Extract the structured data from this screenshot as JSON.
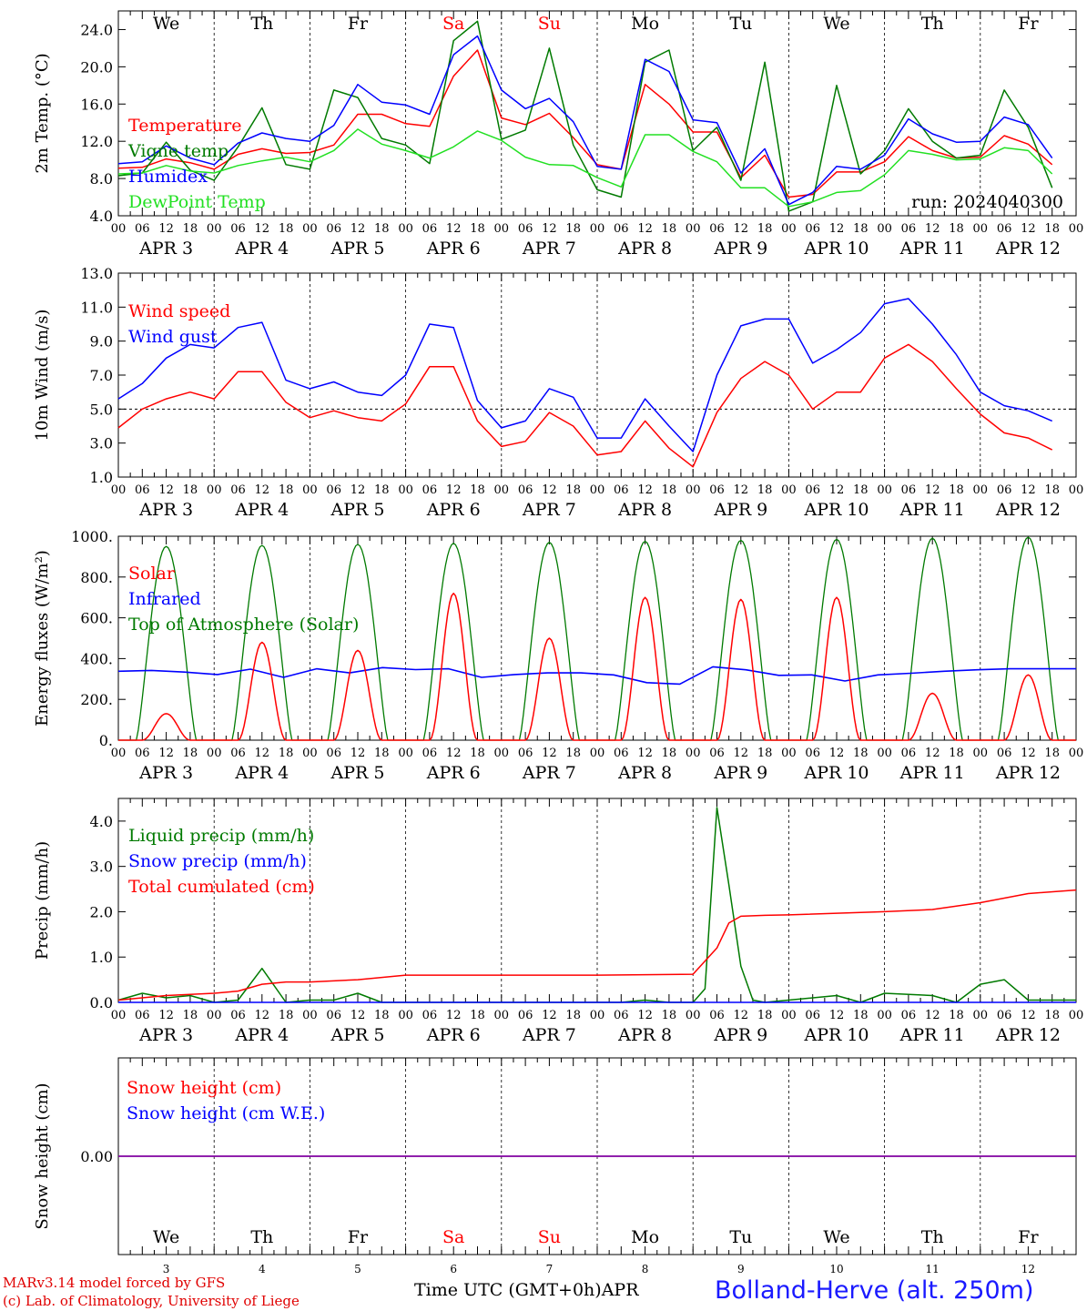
{
  "footer": {
    "model": "MARv3.14 model forced by GFS",
    "copyright": "(c) Lab. of Climatology, University of Liege",
    "xaxis_title": "Time UTC (GMT+0h)APR",
    "station": "Bolland-Herve (alt. 250m)"
  },
  "colors": {
    "red": "#ff0000",
    "blue": "#0000ff",
    "green": "#007a00",
    "lightgreen": "#22e022",
    "purple": "#8000a0"
  },
  "days": {
    "weekdays": [
      "We",
      "Th",
      "Fr",
      "Sa",
      "Su",
      "Mo",
      "Tu",
      "We",
      "Th",
      "Fr"
    ],
    "weekend_color_days": [
      "Sa",
      "Su"
    ],
    "month_labels": [
      "APR  3",
      "APR  4",
      "APR  5",
      "APR  6",
      "APR  7",
      "APR  8",
      "APR  9",
      "APR 10",
      "APR 11",
      "APR 12"
    ],
    "day_numbers": [
      "3",
      "4",
      "5",
      "6",
      "7",
      "8",
      "9",
      "10",
      "11",
      "12"
    ],
    "hour_ticks": [
      "00",
      "06",
      "12",
      "18"
    ],
    "last_tick": "00"
  },
  "chart_data": [
    {
      "type": "line",
      "ylabel": "2m Temp. (°C)",
      "ylim": [
        4,
        26
      ],
      "yticks": [
        "4.0",
        "8.0",
        "12.0",
        "16.0",
        "20.0",
        "24.0"
      ],
      "annotation": "run: 2024040300",
      "x_hours": [
        0,
        6,
        12,
        18,
        24,
        30,
        36,
        42,
        48,
        54,
        60,
        66,
        72,
        78,
        84,
        90,
        96,
        102,
        108,
        114,
        120,
        126,
        132,
        138,
        144,
        150,
        156,
        162,
        168,
        174,
        180,
        186,
        192,
        198,
        204,
        210,
        216,
        222,
        228,
        234
      ],
      "series": [
        {
          "name": "Temperature",
          "color": "red",
          "values": [
            9.1,
            9.2,
            10.1,
            9.7,
            9.0,
            10.6,
            11.2,
            10.7,
            10.8,
            11.6,
            14.9,
            14.9,
            13.9,
            13.6,
            19.0,
            21.8,
            14.5,
            13.8,
            15.0,
            12.4,
            9.5,
            9.0,
            18.1,
            16.0,
            13.0,
            13.0,
            8.1,
            10.5,
            6.0,
            6.3,
            8.7,
            8.7,
            9.8,
            12.5,
            11.0,
            10.2,
            10.3,
            12.6,
            11.7,
            9.5
          ]
        },
        {
          "name": "Vigne temp",
          "color": "green",
          "values": [
            8.3,
            8.6,
            11.9,
            8.9,
            7.8,
            11.4,
            15.6,
            9.5,
            9.0,
            17.5,
            16.7,
            12.3,
            11.6,
            9.6,
            22.8,
            24.9,
            12.2,
            13.2,
            22.0,
            11.6,
            6.8,
            6.0,
            20.5,
            21.8,
            11.0,
            13.5,
            7.8,
            20.5,
            4.5,
            5.5,
            18.0,
            8.5,
            11.0,
            15.5,
            12.0,
            10.2,
            10.5,
            17.5,
            13.5,
            7.0
          ]
        },
        {
          "name": "Humidex",
          "color": "blue",
          "values": [
            9.6,
            9.8,
            11.5,
            10.2,
            9.5,
            11.8,
            12.9,
            12.3,
            12.0,
            13.7,
            18.1,
            16.2,
            15.9,
            14.9,
            21.3,
            23.3,
            17.5,
            15.5,
            16.6,
            14.1,
            9.3,
            9.0,
            20.8,
            19.5,
            14.3,
            14.0,
            8.6,
            11.2,
            5.2,
            6.5,
            9.3,
            9.0,
            10.5,
            14.4,
            12.8,
            11.9,
            12.0,
            14.6,
            13.8,
            10.2
          ]
        },
        {
          "name": "DewPoint Temp",
          "color": "lightgreen",
          "values": [
            8.5,
            8.6,
            9.4,
            8.8,
            8.6,
            9.4,
            9.9,
            10.3,
            9.8,
            11.0,
            13.3,
            11.7,
            11.0,
            10.2,
            11.4,
            13.1,
            12.1,
            10.3,
            9.5,
            9.4,
            8.1,
            7.1,
            12.7,
            12.7,
            10.9,
            9.8,
            7.0,
            7.0,
            5.0,
            5.5,
            6.5,
            6.7,
            8.4,
            11.0,
            10.6,
            10.0,
            10.1,
            11.3,
            11.0,
            8.5
          ]
        }
      ]
    },
    {
      "type": "line",
      "ylabel": "10m Wind (m/s)",
      "ylim": [
        1,
        13
      ],
      "yticks": [
        "1.0",
        "3.0",
        "5.0",
        "7.0",
        "9.0",
        "11.0",
        "13.0"
      ],
      "reference_line": 5.0,
      "x_hours": [
        0,
        6,
        12,
        18,
        24,
        30,
        36,
        42,
        48,
        54,
        60,
        66,
        72,
        78,
        84,
        90,
        96,
        102,
        108,
        114,
        120,
        126,
        132,
        138,
        144,
        150,
        156,
        162,
        168,
        174,
        180,
        186,
        192,
        198,
        204,
        210,
        216,
        222,
        228,
        234
      ],
      "series": [
        {
          "name": "Wind speed",
          "color": "red",
          "values": [
            3.9,
            5.0,
            5.6,
            6.0,
            5.6,
            7.2,
            7.2,
            5.4,
            4.5,
            4.9,
            4.5,
            4.3,
            5.3,
            7.5,
            7.5,
            4.3,
            2.8,
            3.1,
            4.8,
            4.0,
            2.3,
            2.5,
            4.3,
            2.7,
            1.6,
            4.8,
            6.8,
            7.8,
            7.0,
            5.0,
            6.0,
            6.0,
            8.0,
            8.8,
            7.8,
            6.2,
            4.7,
            3.6,
            3.3,
            2.6
          ]
        },
        {
          "name": "Wind gust",
          "color": "blue",
          "values": [
            5.6,
            6.5,
            8.0,
            8.8,
            8.6,
            9.8,
            10.1,
            6.7,
            6.2,
            6.6,
            6.0,
            5.8,
            7.0,
            10.0,
            9.8,
            5.5,
            3.9,
            4.3,
            6.2,
            5.7,
            3.3,
            3.3,
            5.6,
            4.0,
            2.5,
            7.0,
            9.9,
            10.3,
            10.3,
            7.7,
            8.5,
            9.5,
            11.2,
            11.5,
            10.0,
            8.2,
            6.0,
            5.2,
            4.9,
            4.3
          ]
        }
      ]
    },
    {
      "type": "line",
      "ylabel": "Energy fluxes (W/m²)",
      "ylim": [
        0,
        1000
      ],
      "yticks": [
        "0.",
        "200.",
        "400.",
        "600.",
        "800.",
        "1000."
      ],
      "series": [
        {
          "name": "Solar",
          "color": "red",
          "daily_peak": [
            130,
            480,
            440,
            720,
            500,
            700,
            690,
            700,
            230,
            320
          ]
        },
        {
          "name": "Infrared",
          "color": "blue",
          "values": [
            338,
            342,
            334,
            322,
            348,
            308,
            350,
            330,
            356,
            346,
            350,
            308,
            322,
            330,
            330,
            320,
            282,
            275,
            360,
            345,
            318,
            320,
            290,
            320,
            328,
            338,
            345,
            350,
            350,
            350
          ]
        },
        {
          "name": "Top of Atmosphere (Solar)",
          "color": "green",
          "daily_peak": [
            950,
            955,
            960,
            965,
            970,
            975,
            980,
            985,
            990,
            995
          ]
        }
      ]
    },
    {
      "type": "line",
      "ylabel": "Precip (mm/h)",
      "ylim": [
        0,
        4.5
      ],
      "yticks": [
        "0.0",
        "1.0",
        "2.0",
        "3.0",
        "4.0"
      ],
      "series": [
        {
          "name": "Liquid precip (mm/h)",
          "color": "green",
          "x_hours": [
            0,
            6,
            12,
            18,
            24,
            30,
            36,
            42,
            48,
            54,
            60,
            66,
            72,
            78,
            84,
            90,
            96,
            102,
            108,
            114,
            120,
            126,
            132,
            138,
            144,
            147,
            150,
            153,
            156,
            159,
            162,
            168,
            180,
            186,
            192,
            204,
            210,
            216,
            222,
            228,
            234,
            240
          ],
          "values": [
            0.05,
            0.2,
            0.1,
            0.15,
            0.0,
            0.05,
            0.75,
            0.0,
            0.05,
            0.05,
            0.2,
            0.0,
            0.0,
            0.0,
            0.0,
            0.0,
            0.0,
            0.0,
            0.0,
            0.0,
            0.0,
            0.0,
            0.05,
            0.0,
            0.0,
            0.3,
            4.3,
            2.6,
            0.8,
            0.05,
            0.0,
            0.05,
            0.15,
            0.0,
            0.2,
            0.15,
            0.0,
            0.4,
            0.5,
            0.05,
            0.05,
            0.05
          ]
        },
        {
          "name": "Snow precip (mm/h)",
          "color": "blue",
          "x_hours": [
            0,
            240
          ],
          "values": [
            0,
            0
          ]
        },
        {
          "name": "Total cumulated (cm)",
          "color": "red",
          "x_hours": [
            0,
            12,
            24,
            30,
            36,
            42,
            48,
            60,
            72,
            96,
            120,
            144,
            150,
            153,
            156,
            162,
            168,
            192,
            204,
            216,
            228,
            240
          ],
          "values": [
            0.05,
            0.15,
            0.2,
            0.25,
            0.4,
            0.45,
            0.45,
            0.5,
            0.6,
            0.6,
            0.6,
            0.62,
            1.2,
            1.75,
            1.9,
            1.92,
            1.93,
            2.0,
            2.05,
            2.2,
            2.4,
            2.48
          ]
        }
      ]
    },
    {
      "type": "line",
      "ylabel": "Snow height (cm)",
      "yticks": [
        "0.00"
      ],
      "series": [
        {
          "name": "Snow height (cm)",
          "color": "red",
          "values": [
            0,
            0
          ]
        },
        {
          "name": "Snow height (cm W.E.)",
          "color": "blue",
          "values": [
            0,
            0
          ]
        }
      ]
    }
  ]
}
